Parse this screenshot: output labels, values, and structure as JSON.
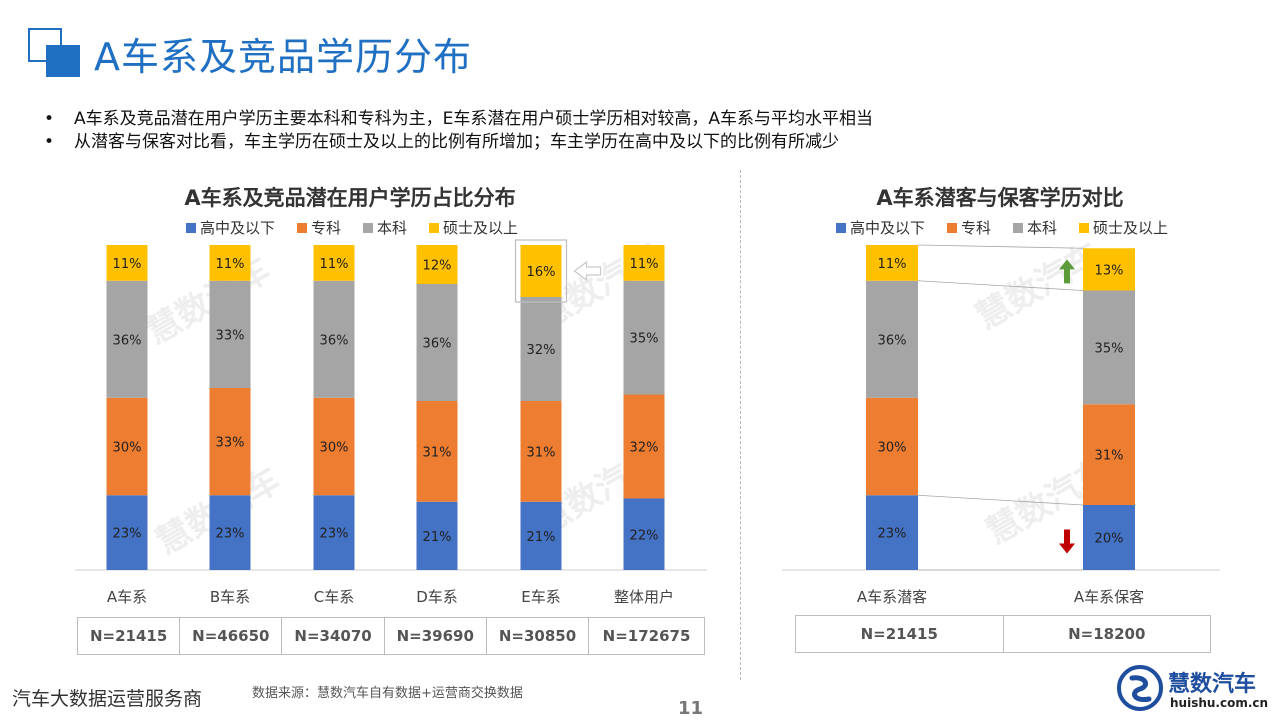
{
  "page": {
    "title": "A车系及竞品学历分布",
    "bullets": [
      "A车系及竞品潜在用户学历主要本科和专科为主，E车系潜在用户硕士学历相对较高，A车系与平均水平相当",
      "从潜客与保客对比看，车主学历在硕士及以上的比例有所增加；车主学历在高中及以下的比例有所减少"
    ],
    "bullet_symbol": "•",
    "footer_left": "汽车大数据运营服务商",
    "source": "数据来源：慧数汽车自有数据+运营商交换数据",
    "page_number": "11",
    "brand": {
      "name": "慧数汽车",
      "url": "huishu.com.cn"
    },
    "watermark": "慧数汽车"
  },
  "colors": {
    "accent": "#1f6fc3",
    "high_school": "#4472c4",
    "college": "#ed7d31",
    "bachelor": "#a5a5a5",
    "master": "#ffc000",
    "arrow_up": "#5b9b3a",
    "arrow_down": "#c00000"
  },
  "chart_data": [
    {
      "type": "bar",
      "stacked": true,
      "title": "A车系及竞品潜在用户学历占比分布",
      "legend_position": "top",
      "categories": [
        "A车系",
        "B车系",
        "C车系",
        "D车系",
        "E车系",
        "整体用户"
      ],
      "series": [
        {
          "name": "高中及以下",
          "values": [
            23,
            23,
            23,
            21,
            21,
            22
          ],
          "labels": [
            "23%",
            "23%",
            "23%",
            "21%",
            "21%",
            "22%"
          ]
        },
        {
          "name": "专科",
          "values": [
            30,
            33,
            30,
            31,
            31,
            32
          ],
          "labels": [
            "30%",
            "33%",
            "30%",
            "31%",
            "31%",
            "32%"
          ]
        },
        {
          "name": "本科",
          "values": [
            36,
            33,
            36,
            36,
            32,
            35
          ],
          "labels": [
            "36%",
            "33%",
            "36%",
            "36%",
            "32%",
            "35%"
          ]
        },
        {
          "name": "硕士及以上",
          "values": [
            11,
            11,
            11,
            12,
            16,
            11
          ],
          "labels": [
            "11%",
            "11%",
            "11%",
            "12%",
            "16%",
            "11%"
          ]
        }
      ],
      "sample_sizes": [
        "N=21415",
        "N=46650",
        "N=34070",
        "N=39690",
        "N=30850",
        "N=172675"
      ],
      "highlight": {
        "category": "E车系",
        "series": "硕士及以上",
        "marker": "left-arrow"
      },
      "ylim": [
        0,
        100
      ]
    },
    {
      "type": "bar",
      "stacked": true,
      "title": "A车系潜客与保客学历对比",
      "legend_position": "top",
      "categories": [
        "A车系潜客",
        "A车系保客"
      ],
      "series": [
        {
          "name": "高中及以下",
          "values": [
            23,
            20
          ],
          "labels": [
            "23%",
            "20%"
          ]
        },
        {
          "name": "专科",
          "values": [
            30,
            31
          ],
          "labels": [
            "30%",
            "31%"
          ]
        },
        {
          "name": "本科",
          "values": [
            36,
            35
          ],
          "labels": [
            "36%",
            "35%"
          ]
        },
        {
          "name": "硕士及以上",
          "values": [
            11,
            13
          ],
          "labels": [
            "11%",
            "13%"
          ]
        }
      ],
      "sample_sizes": [
        "N=21415",
        "N=18200"
      ],
      "trend_markers": {
        "硕士及以上": "up",
        "高中及以下": "down"
      },
      "ylim": [
        0,
        100
      ]
    }
  ]
}
